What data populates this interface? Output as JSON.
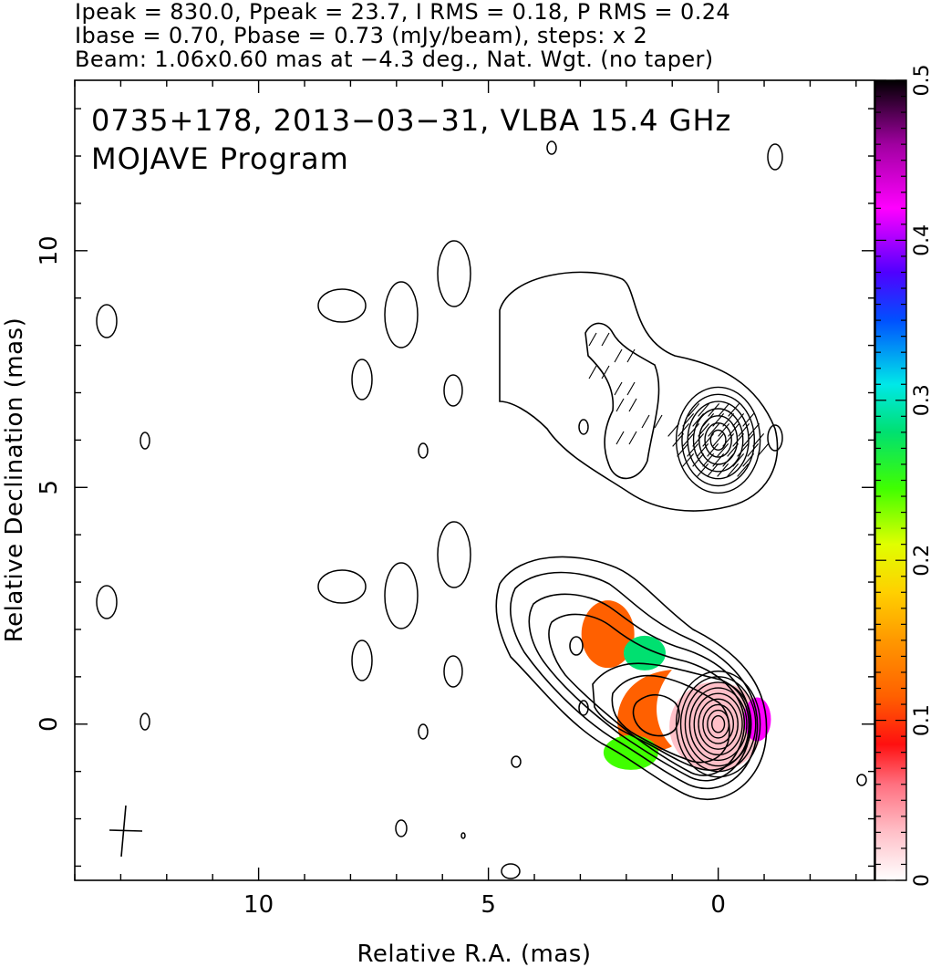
{
  "header": {
    "line1": "Ipeak = 830.0, Ppeak = 23.7, I RMS = 0.18, P RMS = 0.24",
    "line2": "Ibase = 0.70, Pbase = 0.73 (mJy/beam), steps: x 2",
    "line3": "Beam: 1.06x0.60 mas at −4.3 deg., Nat. Wgt. (no taper)"
  },
  "chart_data": [
    {
      "type": "heatmap",
      "title": "0735+178, 2013−03−31, VLBA 15.4 GHz",
      "subtitle": "MOJAVE Program",
      "xlabel": "Relative R.A. (mas)",
      "ylabel": "Relative Declination (mas)",
      "xlim": [
        14,
        -3.4
      ],
      "ylim": [
        -3.3,
        13.6
      ],
      "x_axis_reversed": true,
      "xticks": [
        10,
        5,
        0
      ],
      "yticks": [
        0,
        5,
        10
      ],
      "colorbar": {
        "range": [
          0,
          0.5
        ],
        "ticks": [
          0,
          0.1,
          0.2,
          0.3,
          0.4,
          0.5
        ],
        "position": "right"
      },
      "panels": [
        {
          "name": "polarization",
          "center_dec": 6,
          "contour_levels_outer_to_inner": 7,
          "evpa_vectors": true
        },
        {
          "name": "total-intensity-fractional-polarization",
          "center_dec": 0,
          "contour_levels_outer_to_inner": 9,
          "color_regions": [
            {
              "name": "core",
              "ra_center": 0.05,
              "dec_center": -0.05,
              "fraction": 0.03
            },
            {
              "name": "core-edge",
              "ra_center": -0.85,
              "dec_center": 0.1,
              "fraction": 0.45
            },
            {
              "name": "inner-jet",
              "ra_center": 1.6,
              "dec_center": 0.3,
              "fraction": 0.12
            },
            {
              "name": "north-knot",
              "ra_center": 2.4,
              "dec_center": 1.9,
              "fraction": 0.14
            },
            {
              "name": "jet-edge-north",
              "ra_center": 1.6,
              "dec_center": 1.5,
              "fraction": 0.3
            },
            {
              "name": "jet-edge-south",
              "ra_center": 1.9,
              "dec_center": -0.6,
              "fraction": 0.25
            }
          ]
        }
      ]
    }
  ]
}
